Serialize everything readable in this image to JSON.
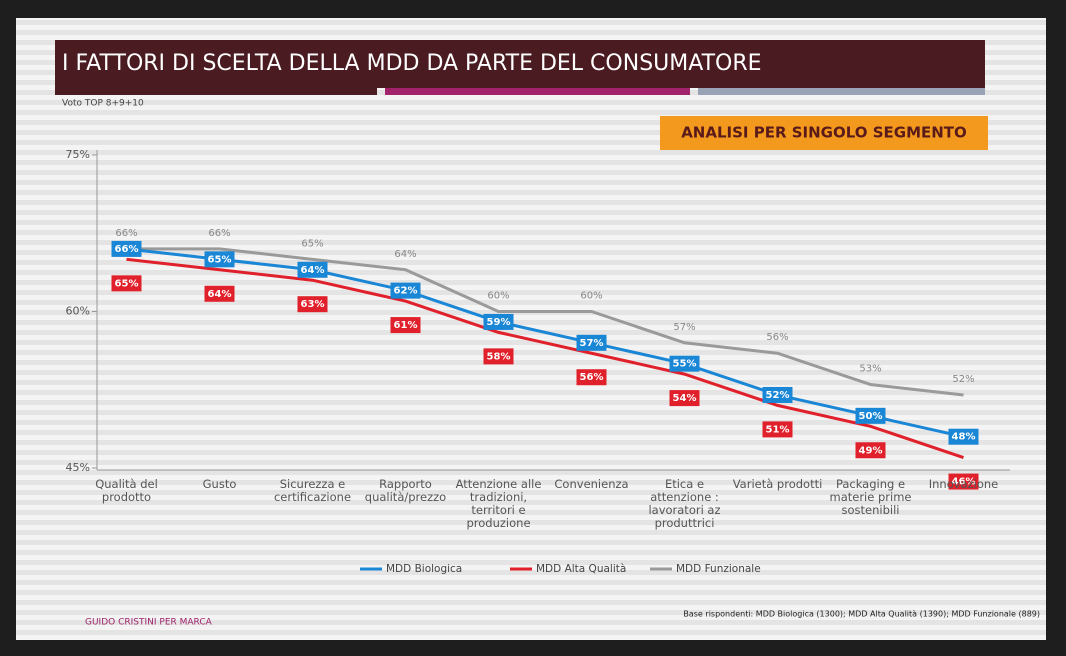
{
  "chart_data": {
    "type": "line",
    "title": "I FATTORI DI SCELTA DELLA MDD DA PARTE DEL CONSUMATORE",
    "subtitle": "ANALISI PER SINGOLO SEGMENTO",
    "y_label": "Voto TOP 8+9+10",
    "footer_left": "GUIDO CRISTINI PER MARCA",
    "footer_right": "Base rispondenti: MDD Biologica (1300); MDD Alta Qualità (1390); MDD Funzionale (889)",
    "categories": [
      "Qualità del prodotto",
      "Gusto",
      "Sicurezza e certificazione",
      "Rapporto qualità/prezzo",
      "Attenzione alle tradizioni, territori e produzione",
      "Convenienza",
      "Etica e attenzione : lavoratori az produttrici",
      "Varietà prodotti",
      "Packaging e materie prime sostenibili",
      "Innovazione"
    ],
    "series": [
      {
        "name": "MDD Biologica",
        "color": "#1a86d6",
        "values": [
          66,
          65,
          64,
          62,
          59,
          57,
          55,
          52,
          50,
          48
        ],
        "value_labels": [
          "66%",
          "65%",
          "64%",
          "62%",
          "59%",
          "57%",
          "55%",
          "52%",
          "50%",
          "48%"
        ]
      },
      {
        "name": "MDD Alta Qualità",
        "color": "#e0202a",
        "values": [
          65,
          64,
          63,
          61,
          58,
          56,
          54,
          51,
          49,
          46
        ],
        "value_labels": [
          "65%",
          "64%",
          "63%",
          "61%",
          "58%",
          "56%",
          "54%",
          "51%",
          "49%",
          "46%"
        ]
      },
      {
        "name": "MDD Funzionale",
        "color": "#9a9a9a",
        "values": [
          66,
          66,
          65,
          64,
          60,
          60,
          57,
          56,
          53,
          52
        ],
        "value_labels": [
          "66%",
          "66%",
          "65%",
          "64%",
          "60%",
          "60%",
          "57%",
          "56%",
          "53%",
          "52%"
        ]
      }
    ],
    "ylim": [
      45,
      75
    ],
    "yticks": [
      {
        "value": 45,
        "label": "45%"
      },
      {
        "value": 60,
        "label": "60%"
      },
      {
        "value": 75,
        "label": "75%"
      }
    ],
    "grid": false
  }
}
